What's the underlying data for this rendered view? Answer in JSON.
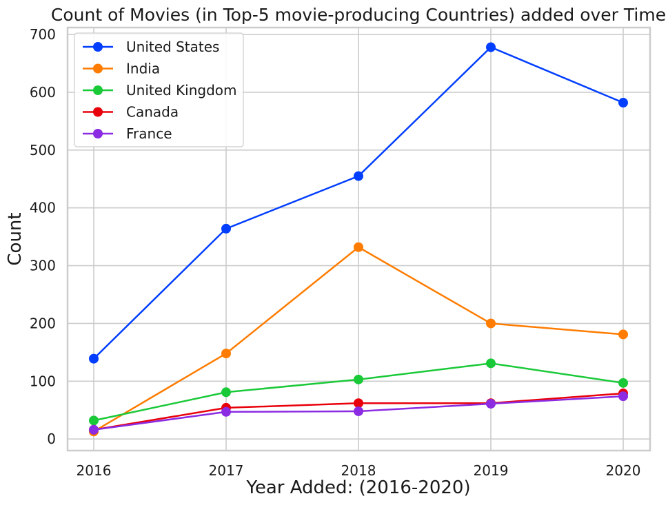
{
  "chart_data": {
    "type": "line",
    "title": "Count of Movies (in Top-5 movie-producing Countries) added over Time",
    "xlabel": "Year Added: (2016-2020)",
    "ylabel": "Count",
    "x": [
      "2016",
      "2017",
      "2018",
      "2019",
      "2020"
    ],
    "yticks": [
      "0",
      "100",
      "200",
      "300",
      "400",
      "500",
      "600",
      "700"
    ],
    "ylim": [
      -20,
      712
    ],
    "grid": true,
    "legend_position": "top-left",
    "series": [
      {
        "name": "United States",
        "color": "#023eff",
        "values": [
          139,
          364,
          455,
          678,
          582
        ]
      },
      {
        "name": "India",
        "color": "#ff7c00",
        "values": [
          13,
          148,
          332,
          200,
          181
        ]
      },
      {
        "name": "United Kingdom",
        "color": "#1ac938",
        "values": [
          32,
          81,
          103,
          131,
          97
        ]
      },
      {
        "name": "Canada",
        "color": "#e8000b",
        "values": [
          16,
          54,
          62,
          62,
          79
        ]
      },
      {
        "name": "France",
        "color": "#8b2be2",
        "values": [
          16,
          47,
          48,
          61,
          74
        ]
      }
    ]
  }
}
